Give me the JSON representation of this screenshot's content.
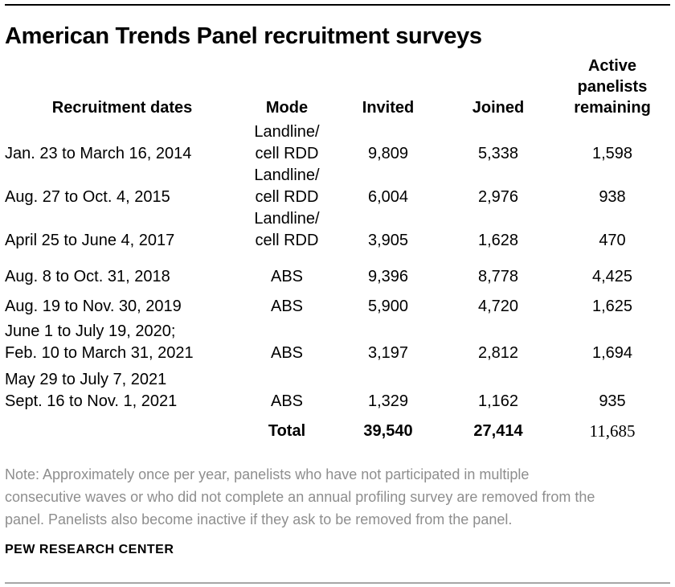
{
  "chart_data": {
    "type": "table",
    "title": "American Trends Panel recruitment surveys",
    "headers": {
      "dates": "Recruitment dates",
      "mode": "Mode",
      "invited": "Invited",
      "joined": "Joined",
      "remaining": "Active\npanelists\nremaining"
    },
    "rows": [
      {
        "dates": "Jan. 23 to March 16, 2014",
        "mode": "Landline/\ncell RDD",
        "invited": "9,809",
        "joined": "5,338",
        "remaining": "1,598"
      },
      {
        "dates": "Aug. 27 to Oct. 4, 2015",
        "mode": "Landline/\ncell RDD",
        "invited": "6,004",
        "joined": "2,976",
        "remaining": "938"
      },
      {
        "dates": "April 25 to June 4, 2017",
        "mode": "Landline/\ncell RDD",
        "invited": "3,905",
        "joined": "1,628",
        "remaining": "470"
      },
      {
        "dates": "Aug. 8 to Oct. 31, 2018",
        "mode": "ABS",
        "invited": "9,396",
        "joined": "8,778",
        "remaining": "4,425"
      },
      {
        "dates": "Aug. 19 to Nov. 30, 2019",
        "mode": "ABS",
        "invited": "5,900",
        "joined": "4,720",
        "remaining": "1,625"
      },
      {
        "dates": "June 1 to July 19, 2020;\nFeb. 10 to March 31, 2021",
        "mode": "ABS",
        "invited": "3,197",
        "joined": "2,812",
        "remaining": "1,694"
      },
      {
        "dates": "May 29 to July 7, 2021\nSept. 16 to Nov. 1, 2021",
        "mode": "ABS",
        "invited": "1,329",
        "joined": "1,162",
        "remaining": "935"
      }
    ],
    "total_row": {
      "label": "Total",
      "invited": "39,540",
      "joined": "27,414",
      "remaining": "11,685"
    },
    "note_lines": [
      "Note: Approximately once per year, panelists who have not participated in multiple",
      "consecutive waves or who did not complete an annual profiling survey are removed from the",
      "panel. Panelists also become inactive if they ask to be removed from the panel."
    ],
    "source_label": "PEW RESEARCH CENTER",
    "colors": {
      "text": "#000000",
      "rule_top": "#000000",
      "rule_bottom": "#a6a6a6",
      "note_text": "#8e8e8e"
    }
  }
}
